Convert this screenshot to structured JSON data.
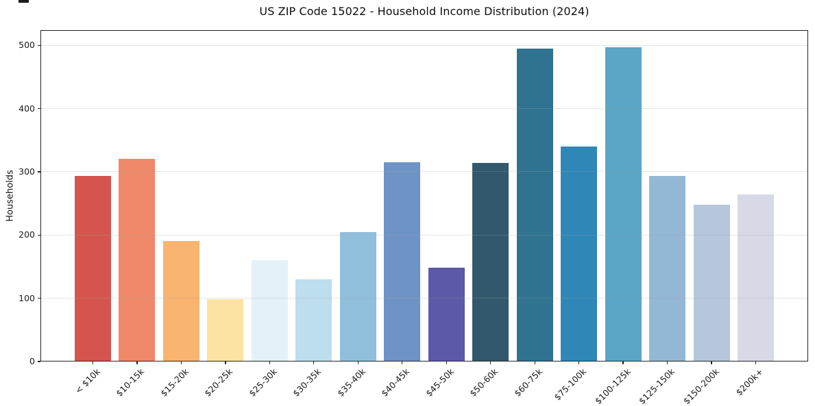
{
  "screen": {
    "artifact_color": "#1c1c1c"
  },
  "chart_data": {
    "type": "bar",
    "title": "US ZIP Code 15022 - Household Income Distribution (2024)",
    "xlabel": "",
    "ylabel": "Households",
    "categories": [
      "< $10k",
      "$10-15k",
      "$15-20k",
      "$20-25k",
      "$25-30k",
      "$30-35k",
      "$35-40k",
      "$40-45k",
      "$45-50k",
      "$50-60k",
      "$60-75k",
      "$75-100k",
      "$100-125k",
      "$125-150k",
      "$150-200k",
      "$200k+"
    ],
    "values": [
      293,
      320,
      191,
      99,
      160,
      130,
      205,
      315,
      148,
      314,
      495,
      340,
      497,
      293,
      248,
      264
    ],
    "bar_colors": [
      "#d4554d",
      "#f0886a",
      "#f9b470",
      "#fce3a3",
      "#e4f1f6",
      "#bcdeee",
      "#90bfdc",
      "#6e93c5",
      "#5c59a8",
      "#32596b",
      "#2f7391",
      "#2f87b8",
      "#5ba5c7",
      "#93b8d5",
      "#b6c7dd",
      "#d7d9e7"
    ],
    "yticks": [
      0,
      100,
      200,
      300,
      400,
      500
    ],
    "ylim": [
      0,
      524
    ],
    "grid": "horizontal",
    "grid_color": "rgba(160,160,160,0.28)",
    "axis_color": "#222222",
    "tick_label_color": "#1a1a1a",
    "legend_position": "none",
    "x_label_rotation_deg": 45
  }
}
